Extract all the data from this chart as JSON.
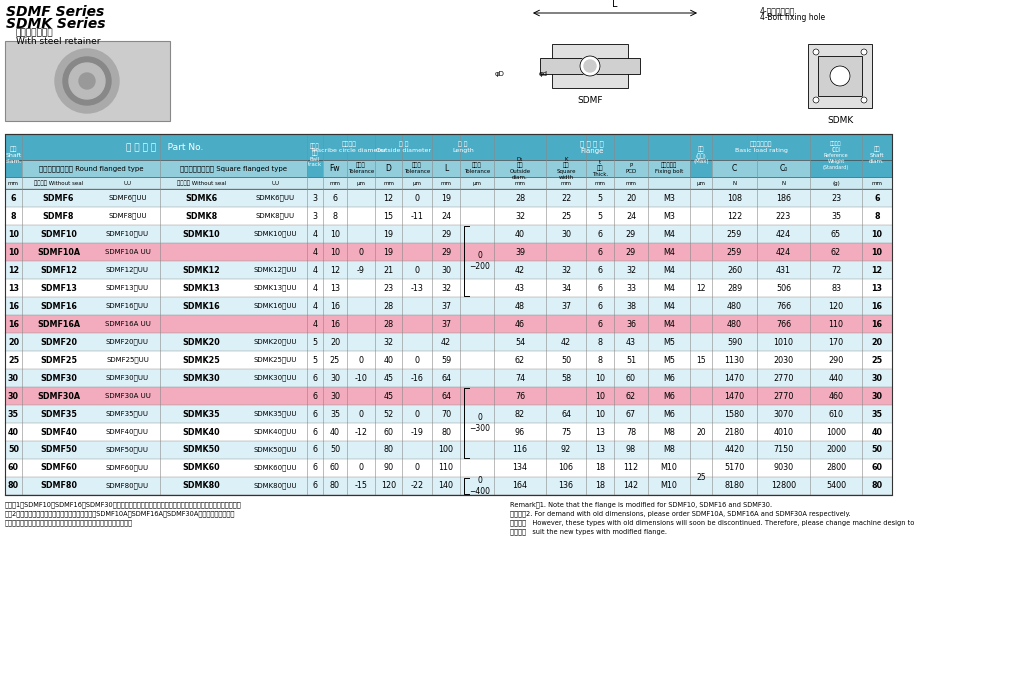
{
  "title_line1": "SDMF Series",
  "title_line2": "SDMK Series",
  "subtitle1": "鋼板保持器付き",
  "subtitle2": "With steel retainer",
  "rows": [
    {
      "d": "6",
      "open1": "SDMF6",
      "uu1": "SDMF6　UU",
      "open2": "SDMK6",
      "uu2": "SDMK6　UU",
      "ball": "3",
      "fw": "6",
      "fw_tol": "",
      "D": "12",
      "D_tol": "0",
      "L": "19",
      "L_tol": "",
      "D1": "28",
      "K": "22",
      "t": "5",
      "P": "20",
      "bolt": "M3",
      "ecc": "",
      "C": "108",
      "C0": "186",
      "W": "23",
      "highlight": false
    },
    {
      "d": "8",
      "open1": "SDMF8",
      "uu1": "SDMF8　UU",
      "open2": "SDMK8",
      "uu2": "SDMK8　UU",
      "ball": "3",
      "fw": "8",
      "fw_tol": "",
      "D": "15",
      "D_tol": "-11",
      "L": "24",
      "L_tol": "",
      "D1": "32",
      "K": "25",
      "t": "5",
      "P": "24",
      "bolt": "M3",
      "ecc": "",
      "C": "122",
      "C0": "223",
      "W": "35",
      "highlight": false
    },
    {
      "d": "10",
      "open1": "SDMF10",
      "uu1": "SDMF10　UU",
      "open2": "SDMK10",
      "uu2": "SDMK10　UU",
      "ball": "4",
      "fw": "10",
      "fw_tol": "",
      "D": "19",
      "D_tol": "",
      "L": "29",
      "L_tol": "",
      "D1": "40",
      "K": "30",
      "t": "6",
      "P": "29",
      "bolt": "M4",
      "ecc": "",
      "C": "259",
      "C0": "424",
      "W": "65",
      "highlight": false
    },
    {
      "d": "10",
      "open1": "SDMF10A",
      "uu1": "SDMF10A UU",
      "open2": "",
      "uu2": "",
      "ball": "4",
      "fw": "10",
      "fw_tol": "0",
      "D": "19",
      "D_tol": "",
      "L": "29",
      "L_tol": "",
      "D1": "39",
      "K": "",
      "t": "6",
      "P": "29",
      "bolt": "M4",
      "ecc": "",
      "C": "259",
      "C0": "424",
      "W": "62",
      "highlight": true
    },
    {
      "d": "12",
      "open1": "SDMF12",
      "uu1": "SDMF12　UU",
      "open2": "SDMK12",
      "uu2": "SDMK12　UU",
      "ball": "4",
      "fw": "12",
      "fw_tol": "-9",
      "D": "21",
      "D_tol": "0",
      "L": "30",
      "L_tol": "",
      "D1": "42",
      "K": "32",
      "t": "6",
      "P": "32",
      "bolt": "M4",
      "ecc": "",
      "C": "260",
      "C0": "431",
      "W": "72",
      "highlight": false
    },
    {
      "d": "13",
      "open1": "SDMF13",
      "uu1": "SDMF13　UU",
      "open2": "SDMK13",
      "uu2": "SDMK13　UU",
      "ball": "4",
      "fw": "13",
      "fw_tol": "",
      "D": "23",
      "D_tol": "-13",
      "L": "32",
      "L_tol": "",
      "D1": "43",
      "K": "34",
      "t": "6",
      "P": "33",
      "bolt": "M4",
      "ecc": "",
      "C": "289",
      "C0": "506",
      "W": "83",
      "highlight": false
    },
    {
      "d": "16",
      "open1": "SDMF16",
      "uu1": "SDMF16　UU",
      "open2": "SDMK16",
      "uu2": "SDMK16　UU",
      "ball": "4",
      "fw": "16",
      "fw_tol": "",
      "D": "28",
      "D_tol": "",
      "L": "37",
      "L_tol": "",
      "D1": "48",
      "K": "37",
      "t": "6",
      "P": "38",
      "bolt": "M4",
      "ecc": "",
      "C": "480",
      "C0": "766",
      "W": "120",
      "highlight": false
    },
    {
      "d": "16",
      "open1": "SDMF16A",
      "uu1": "SDMF16A UU",
      "open2": "",
      "uu2": "",
      "ball": "4",
      "fw": "16",
      "fw_tol": "",
      "D": "28",
      "D_tol": "",
      "L": "37",
      "L_tol": "",
      "D1": "46",
      "K": "",
      "t": "6",
      "P": "36",
      "bolt": "M4",
      "ecc": "",
      "C": "480",
      "C0": "766",
      "W": "110",
      "highlight": true
    },
    {
      "d": "20",
      "open1": "SDMF20",
      "uu1": "SDMF20　UU",
      "open2": "SDMK20",
      "uu2": "SDMK20　UU",
      "ball": "5",
      "fw": "20",
      "fw_tol": "",
      "D": "32",
      "D_tol": "",
      "L": "42",
      "L_tol": "",
      "D1": "54",
      "K": "42",
      "t": "8",
      "P": "43",
      "bolt": "M5",
      "ecc": "",
      "C": "590",
      "C0": "1010",
      "W": "170",
      "highlight": false
    },
    {
      "d": "25",
      "open1": "SDMF25",
      "uu1": "SDMF25　UU",
      "open2": "SDMK25",
      "uu2": "SDMK25　UU",
      "ball": "5",
      "fw": "25",
      "fw_tol": "0",
      "D": "40",
      "D_tol": "0",
      "L": "59",
      "L_tol": "",
      "D1": "62",
      "K": "50",
      "t": "8",
      "P": "51",
      "bolt": "M5",
      "ecc": "",
      "C": "1130",
      "C0": "2030",
      "W": "290",
      "highlight": false
    },
    {
      "d": "30",
      "open1": "SDMF30",
      "uu1": "SDMF30　UU",
      "open2": "SDMK30",
      "uu2": "SDMK30　UU",
      "ball": "6",
      "fw": "30",
      "fw_tol": "-10",
      "D": "45",
      "D_tol": "-16",
      "L": "64",
      "L_tol": "",
      "D1": "74",
      "K": "58",
      "t": "10",
      "P": "60",
      "bolt": "M6",
      "ecc": "",
      "C": "1470",
      "C0": "2770",
      "W": "440",
      "highlight": false
    },
    {
      "d": "30",
      "open1": "SDMF30A",
      "uu1": "SDMF30A UU",
      "open2": "",
      "uu2": "",
      "ball": "6",
      "fw": "30",
      "fw_tol": "",
      "D": "45",
      "D_tol": "",
      "L": "64",
      "L_tol": "",
      "D1": "76",
      "K": "",
      "t": "10",
      "P": "62",
      "bolt": "M6",
      "ecc": "",
      "C": "1470",
      "C0": "2770",
      "W": "460",
      "highlight": true
    },
    {
      "d": "35",
      "open1": "SDMF35",
      "uu1": "SDMF35　UU",
      "open2": "SDMK35",
      "uu2": "SDMK35　UU",
      "ball": "6",
      "fw": "35",
      "fw_tol": "0",
      "D": "52",
      "D_tol": "0",
      "L": "70",
      "L_tol": "",
      "D1": "82",
      "K": "64",
      "t": "10",
      "P": "67",
      "bolt": "M6",
      "ecc": "",
      "C": "1580",
      "C0": "3070",
      "W": "610",
      "highlight": false
    },
    {
      "d": "40",
      "open1": "SDMF40",
      "uu1": "SDMF40　UU",
      "open2": "SDMK40",
      "uu2": "SDMK40　UU",
      "ball": "6",
      "fw": "40",
      "fw_tol": "-12",
      "D": "60",
      "D_tol": "-19",
      "L": "80",
      "L_tol": "",
      "D1": "96",
      "K": "75",
      "t": "13",
      "P": "78",
      "bolt": "M8",
      "ecc": "",
      "C": "2180",
      "C0": "4010",
      "W": "1000",
      "highlight": false
    },
    {
      "d": "50",
      "open1": "SDMF50",
      "uu1": "SDMF50　UU",
      "open2": "SDMK50",
      "uu2": "SDMK50　UU",
      "ball": "6",
      "fw": "50",
      "fw_tol": "",
      "D": "80",
      "D_tol": "",
      "L": "100",
      "L_tol": "",
      "D1": "116",
      "K": "92",
      "t": "13",
      "P": "98",
      "bolt": "M8",
      "ecc": "",
      "C": "4420",
      "C0": "7150",
      "W": "2000",
      "highlight": false
    },
    {
      "d": "60",
      "open1": "SDMF60",
      "uu1": "SDMF60　UU",
      "open2": "SDMK60",
      "uu2": "SDMK60　UU",
      "ball": "6",
      "fw": "60",
      "fw_tol": "0",
      "D": "90",
      "D_tol": "0",
      "L": "110",
      "L_tol": "",
      "D1": "134",
      "K": "106",
      "t": "18",
      "P": "112",
      "bolt": "M10",
      "ecc": "",
      "C": "5170",
      "C0": "9030",
      "W": "2800",
      "highlight": false
    },
    {
      "d": "80",
      "open1": "SDMF80",
      "uu1": "SDMF80　UU",
      "open2": "SDMK80",
      "uu2": "SDMK80　UU",
      "ball": "6",
      "fw": "80",
      "fw_tol": "-15",
      "D": "120",
      "D_tol": "-22",
      "L": "140",
      "L_tol": "",
      "D1": "164",
      "K": "136",
      "t": "18",
      "P": "142",
      "bolt": "M10",
      "ecc": "",
      "C": "8180",
      "C0": "12800",
      "W": "5400",
      "highlight": false
    }
  ],
  "ecc_merges": [
    {
      "rows": [
        3,
        3
      ],
      "val": "12"
    },
    {
      "rows": [
        4,
        7
      ],
      "val": "12"
    },
    {
      "rows": [
        9,
        9
      ],
      "val": "15"
    },
    {
      "rows": [
        13,
        13
      ],
      "val": "20"
    },
    {
      "rows": [
        15,
        16
      ],
      "val": "25"
    }
  ],
  "ltol_merges": [
    {
      "rows": [
        2,
        5
      ],
      "val": "0\n−200"
    },
    {
      "rows": [
        11,
        14
      ],
      "val": "0\n−300"
    },
    {
      "rows": [
        16,
        16
      ],
      "val": "0\n−400"
    }
  ],
  "footer1": "備考　1．SDMF10、SDMF16、SDMF30は、フランジの仕様をモデルチェンジ致しましたのでご注意ください。",
  "footer2": "　　2．旧来のフランジ寸法の品が必要な場合は、SDMF10A、SDMF16A、SDMF30Aをご用命ください。",
  "footer3": "　　（旧品消化後廃止する予定ですので、設計変更をお願い致します）",
  "remark1": "Remark：1. Note that the flange is modified for SDMF10, SDMF16 and SDMF30.",
  "remark2": "　　　　2. For demand with old dimensions, please order SDMF10A, SDMF16A and SDMF30A respectively.",
  "remark3": "　　　　   However, these types with old dimensions will soon be discontinued. Therefore, please change machine design to",
  "remark4": "　　　　   suit the new types with modified flange.",
  "HDR_DARK": "#4BACC6",
  "HDR_MED": "#92CDDC",
  "HDR_LIGHT": "#CDE9F2",
  "ROW_NORMAL": "#DCF0F7",
  "ROW_HIGHLIGHT": "#F2ACBD",
  "ROW_ALT": "#C5E3EF"
}
